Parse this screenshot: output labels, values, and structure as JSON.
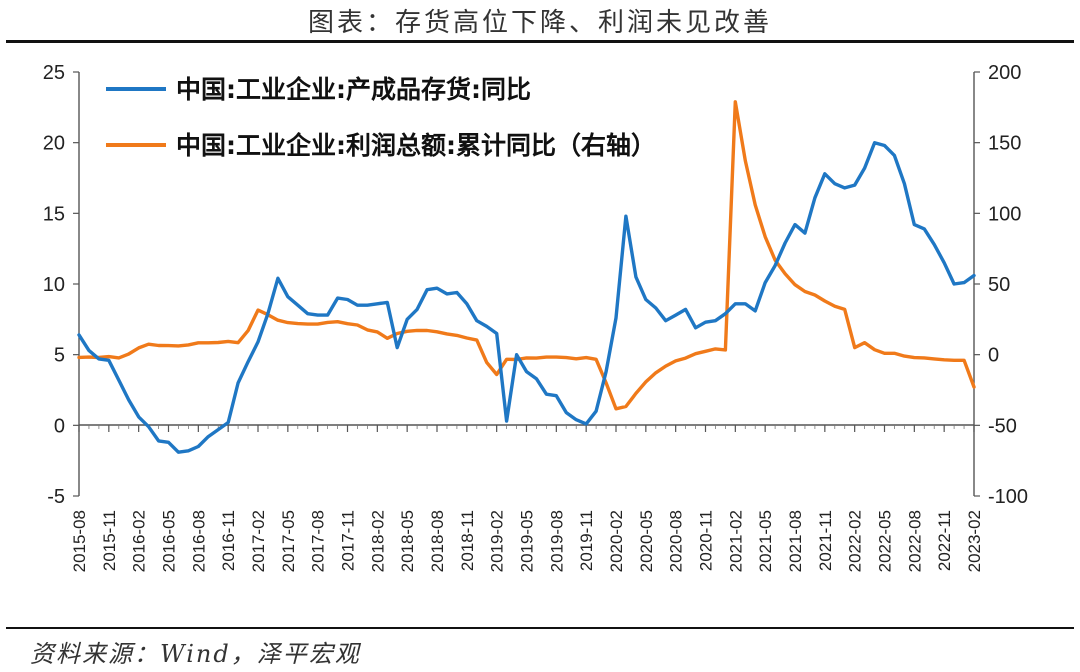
{
  "title": "图表：存货高位下降、利润未见改善",
  "source": "资料来源：Wind，泽平宏观",
  "chart_data": {
    "type": "line",
    "left_axis": {
      "min": -5,
      "max": 25,
      "ticks": [
        -5,
        0,
        5,
        10,
        15,
        20,
        25
      ]
    },
    "right_axis": {
      "min": -100,
      "max": 200,
      "ticks": [
        -100,
        -50,
        0,
        50,
        100,
        150,
        200
      ]
    },
    "x_tick_labels": [
      "2015-08",
      "2015-11",
      "2016-02",
      "2016-05",
      "2016-08",
      "2016-11",
      "2017-02",
      "2017-05",
      "2017-08",
      "2017-11",
      "2018-02",
      "2018-05",
      "2018-08",
      "2018-11",
      "2019-02",
      "2019-05",
      "2019-08",
      "2019-11",
      "2020-02",
      "2020-05",
      "2020-08",
      "2020-11",
      "2021-02",
      "2021-05",
      "2021-08",
      "2021-11",
      "2022-02",
      "2022-05",
      "2022-08",
      "2022-11",
      "2023-02"
    ],
    "legend_position": "top-left",
    "series": [
      {
        "name": "中国:工业企业:产成品存货:同比",
        "axis": "left",
        "color": "#1f77c4",
        "x": [
          "2015-08",
          "2015-09",
          "2015-10",
          "2015-11",
          "2015-12",
          "2016-01",
          "2016-02",
          "2016-03",
          "2016-04",
          "2016-05",
          "2016-06",
          "2016-07",
          "2016-08",
          "2016-09",
          "2016-10",
          "2016-11",
          "2016-12",
          "2017-01",
          "2017-02",
          "2017-03",
          "2017-04",
          "2017-05",
          "2017-06",
          "2017-07",
          "2017-08",
          "2017-09",
          "2017-10",
          "2017-11",
          "2017-12",
          "2018-01",
          "2018-02",
          "2018-03",
          "2018-04",
          "2018-05",
          "2018-06",
          "2018-07",
          "2018-08",
          "2018-09",
          "2018-10",
          "2018-11",
          "2018-12",
          "2019-01",
          "2019-02",
          "2019-03",
          "2019-04",
          "2019-05",
          "2019-06",
          "2019-07",
          "2019-08",
          "2019-09",
          "2019-10",
          "2019-11",
          "2019-12",
          "2020-01",
          "2020-02",
          "2020-03",
          "2020-04",
          "2020-05",
          "2020-06",
          "2020-07",
          "2020-08",
          "2020-09",
          "2020-10",
          "2020-11",
          "2020-12",
          "2021-01",
          "2021-02",
          "2021-03",
          "2021-04",
          "2021-05",
          "2021-06",
          "2021-07",
          "2021-08",
          "2021-09",
          "2021-10",
          "2021-11",
          "2021-12",
          "2022-01",
          "2022-02",
          "2022-03",
          "2022-04",
          "2022-05",
          "2022-06",
          "2022-07",
          "2022-08",
          "2022-09",
          "2022-10",
          "2022-11",
          "2022-12",
          "2023-01",
          "2023-02"
        ],
        "values": [
          6.4,
          5.3,
          4.7,
          4.6,
          3.2,
          1.8,
          0.6,
          -0.1,
          -1.1,
          -1.2,
          -1.9,
          -1.8,
          -1.5,
          -0.8,
          -0.3,
          0.2,
          3.0,
          4.5,
          5.9,
          7.9,
          10.4,
          9.1,
          8.5,
          7.9,
          7.8,
          7.8,
          9.0,
          8.9,
          8.5,
          8.5,
          8.6,
          8.7,
          5.5,
          7.5,
          8.2,
          9.6,
          9.7,
          9.3,
          9.4,
          8.6,
          7.4,
          7.0,
          6.5,
          0.3,
          5.0,
          3.8,
          3.3,
          2.2,
          2.1,
          0.9,
          0.4,
          0.1,
          1.0,
          3.8,
          7.6,
          14.8,
          10.5,
          8.9,
          8.3,
          7.4,
          7.8,
          8.2,
          6.9,
          7.3,
          7.4,
          7.9,
          8.6,
          8.6,
          8.1,
          10.1,
          11.3,
          12.9,
          14.2,
          13.6,
          16.1,
          17.8,
          17.1,
          16.8,
          17.0,
          18.2,
          20.0,
          19.8,
          19.1,
          17.1,
          14.2,
          13.9,
          12.8,
          11.5,
          10.0,
          10.1,
          10.6
        ]
      },
      {
        "name": "中国:工业企业:利润总额:累计同比（右轴）",
        "axis": "right",
        "color": "#f07a1a",
        "x": [
          "2015-08",
          "2015-09",
          "2015-10",
          "2015-11",
          "2015-12",
          "2016-01",
          "2016-02",
          "2016-03",
          "2016-04",
          "2016-05",
          "2016-06",
          "2016-07",
          "2016-08",
          "2016-09",
          "2016-10",
          "2016-11",
          "2016-12",
          "2017-01",
          "2017-02",
          "2017-03",
          "2017-04",
          "2017-05",
          "2017-06",
          "2017-07",
          "2017-08",
          "2017-09",
          "2017-10",
          "2017-11",
          "2017-12",
          "2018-01",
          "2018-02",
          "2018-03",
          "2018-04",
          "2018-05",
          "2018-06",
          "2018-07",
          "2018-08",
          "2018-09",
          "2018-10",
          "2018-11",
          "2018-12",
          "2019-01",
          "2019-02",
          "2019-03",
          "2019-04",
          "2019-05",
          "2019-06",
          "2019-07",
          "2019-08",
          "2019-09",
          "2019-10",
          "2019-11",
          "2019-12",
          "2020-01",
          "2020-02",
          "2020-03",
          "2020-04",
          "2020-05",
          "2020-06",
          "2020-07",
          "2020-08",
          "2020-09",
          "2020-10",
          "2020-11",
          "2020-12",
          "2021-01",
          "2021-02",
          "2021-03",
          "2021-04",
          "2021-05",
          "2021-06",
          "2021-07",
          "2021-08",
          "2021-09",
          "2021-10",
          "2021-11",
          "2021-12",
          "2022-01",
          "2022-02",
          "2022-03",
          "2022-04",
          "2022-05",
          "2022-06",
          "2022-07",
          "2022-08",
          "2022-09",
          "2022-10",
          "2022-11",
          "2022-12",
          "2023-01",
          "2023-02"
        ],
        "values": [
          -1.9,
          -1.7,
          -2.0,
          -1.4,
          -2.3,
          0.5,
          4.8,
          7.4,
          6.5,
          6.4,
          6.2,
          6.9,
          8.4,
          8.4,
          8.6,
          9.4,
          8.5,
          17.0,
          31.5,
          28.3,
          24.4,
          22.7,
          22.0,
          21.6,
          21.6,
          22.8,
          23.3,
          21.9,
          21.0,
          17.5,
          16.1,
          11.6,
          15.0,
          16.5,
          17.2,
          17.1,
          16.2,
          14.7,
          13.6,
          11.8,
          10.3,
          -5.5,
          -14.0,
          -3.3,
          -3.4,
          -2.3,
          -2.4,
          -1.7,
          -1.7,
          -2.1,
          -2.9,
          -2.1,
          -3.3,
          -20.0,
          -38.3,
          -36.7,
          -27.4,
          -19.3,
          -12.8,
          -8.1,
          -4.4,
          -2.4,
          0.7,
          2.4,
          4.1,
          3.4,
          178.9,
          137.3,
          106.0,
          83.4,
          66.9,
          57.3,
          49.5,
          44.7,
          42.2,
          38.0,
          34.3,
          32.0,
          5.0,
          8.5,
          3.5,
          1.0,
          1.0,
          -1.0,
          -2.1,
          -2.3,
          -3.0,
          -3.6,
          -4.0,
          -4.0,
          -22.9
        ]
      }
    ]
  }
}
